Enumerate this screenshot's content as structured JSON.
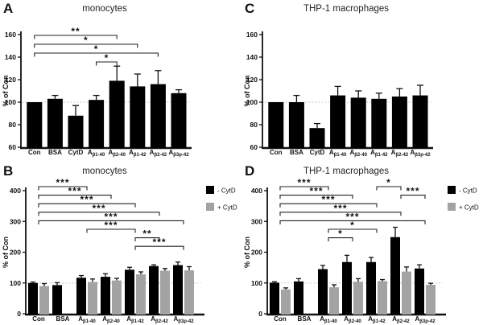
{
  "figure": {
    "background": "#ffffff",
    "bar_color": "#000000",
    "gray_color": "#a3a3a3",
    "reference_line_color": "#cccccc",
    "axis_color": "#111111"
  },
  "legend": {
    "items": [
      {
        "label": "- CytD",
        "color": "#000000"
      },
      {
        "label": "+ CytD",
        "color": "#a3a3a3"
      }
    ]
  },
  "chart_data": [
    {
      "panel": "A",
      "title": "monocytes",
      "type": "bar",
      "ylabel": "% of Con",
      "ylim": [
        60,
        160
      ],
      "yticks": [
        60,
        80,
        100,
        120,
        140,
        160
      ],
      "reference_line": 100,
      "grid": false,
      "legend": false,
      "categories": [
        "Con",
        "BSA",
        "CytD",
        "Aβ1-40",
        "Aβ2-40",
        "Aβ1-42",
        "Aβ2-42",
        "Aβ3p-42"
      ],
      "values": [
        100,
        103,
        88,
        102,
        119,
        114,
        116,
        108
      ],
      "errors": [
        0,
        3,
        9,
        4,
        13,
        11,
        12,
        3
      ],
      "brackets": [
        {
          "from": 0,
          "to": 4,
          "label": "**",
          "row": 0
        },
        {
          "from": 0,
          "to": 5,
          "label": "*",
          "row": 1
        },
        {
          "from": 0,
          "to": 6,
          "label": "*",
          "row": 2
        },
        {
          "from": 3,
          "to": 4,
          "label": "*",
          "row": 3
        }
      ]
    },
    {
      "panel": "C",
      "title": "THP-1 macrophages",
      "type": "bar",
      "ylabel": "% of Con",
      "ylim": [
        60,
        160
      ],
      "yticks": [
        60,
        80,
        100,
        120,
        140,
        160
      ],
      "reference_line": 100,
      "grid": false,
      "legend": false,
      "categories": [
        "Con",
        "BSA",
        "CytD",
        "Aβ1-40",
        "Aβ2-40",
        "Aβ1-42",
        "Aβ2-42",
        "Aβ3p-42"
      ],
      "values": [
        100,
        100,
        77,
        106,
        104,
        103,
        105,
        106
      ],
      "errors": [
        0,
        6,
        4,
        8,
        6,
        5,
        7,
        9
      ],
      "brackets": []
    },
    {
      "panel": "B",
      "title": "monocytes",
      "type": "grouped_bar",
      "ylabel": "% of Con",
      "ylim": [
        0,
        400
      ],
      "yticks": [
        0,
        100,
        200,
        300,
        400
      ],
      "reference_line": 100,
      "grid": false,
      "legend": true,
      "categories": [
        "Con",
        "BSA",
        "Aβ1-40",
        "Aβ2-40",
        "Aβ1-42",
        "Aβ2-42",
        "Aβ3p-42"
      ],
      "series": [
        {
          "name": "- CytD",
          "color": "#000000",
          "values": [
            100,
            93,
            117,
            120,
            143,
            155,
            158
          ],
          "errors": [
            3,
            8,
            7,
            10,
            8,
            4,
            10
          ]
        },
        {
          "name": "+ CytD",
          "color": "#a3a3a3",
          "values": [
            90,
            null,
            103,
            108,
            128,
            140,
            141
          ],
          "errors": [
            8,
            null,
            10,
            7,
            8,
            7,
            12
          ]
        }
      ],
      "brackets": [
        {
          "from": 0,
          "to": 2,
          "label": "***",
          "row": 0
        },
        {
          "from": 0,
          "to": 3,
          "label": "***",
          "row": 1
        },
        {
          "from": 0,
          "to": 4,
          "label": "***",
          "row": 2
        },
        {
          "from": 0,
          "to": 5,
          "label": "***",
          "row": 3
        },
        {
          "from": 0,
          "to": 6,
          "label": "***",
          "row": 4
        },
        {
          "from": 2,
          "to": 4,
          "label": "***",
          "row": 5
        },
        {
          "from": 4,
          "to": 5,
          "label": "**",
          "row": 6
        },
        {
          "from": 4,
          "to": 6,
          "label": "***",
          "row": 7
        }
      ]
    },
    {
      "panel": "D",
      "title": "THP-1 macrophages",
      "type": "grouped_bar",
      "ylabel": "% of Con",
      "ylim": [
        0,
        400
      ],
      "yticks": [
        0,
        100,
        200,
        300,
        400
      ],
      "reference_line": 100,
      "grid": false,
      "legend": true,
      "categories": [
        "Con",
        "BSA",
        "Aβ1-40",
        "Aβ2-40",
        "Aβ1-42",
        "Aβ2-42",
        "Aβ3p-42"
      ],
      "series": [
        {
          "name": "- CytD",
          "color": "#000000",
          "values": [
            101,
            105,
            145,
            168,
            168,
            249,
            147
          ],
          "errors": [
            3,
            9,
            12,
            22,
            15,
            32,
            12
          ]
        },
        {
          "name": "+ CytD",
          "color": "#a3a3a3",
          "values": [
            79,
            null,
            86,
            104,
            106,
            137,
            94
          ],
          "errors": [
            5,
            null,
            8,
            10,
            5,
            15,
            5
          ]
        }
      ],
      "brackets": [
        {
          "from": 0,
          "to": 2,
          "label": "***",
          "row": 0
        },
        {
          "from": 4,
          "to": 5,
          "label": "*",
          "row": 0
        },
        {
          "from": 0,
          "to": 3,
          "label": "***",
          "row": 1
        },
        {
          "from": 5,
          "to": 6,
          "label": "***",
          "row": 1
        },
        {
          "from": 0,
          "to": 4,
          "label": "***",
          "row": 2
        },
        {
          "from": 0,
          "to": 5,
          "label": "***",
          "row": 3
        },
        {
          "from": 0,
          "to": 6,
          "label": "***",
          "row": 4
        },
        {
          "from": 2,
          "to": 4,
          "label": "*",
          "row": 5
        },
        {
          "from": 2,
          "to": 3,
          "label": "*",
          "row": 6
        }
      ]
    }
  ]
}
